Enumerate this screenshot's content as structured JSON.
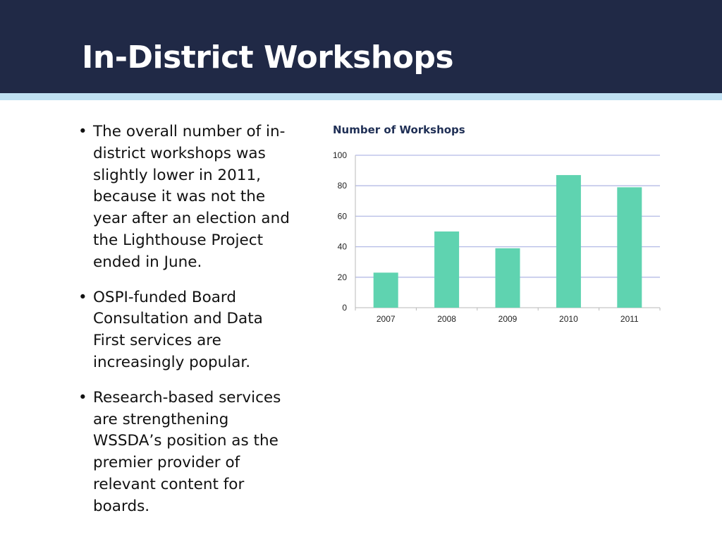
{
  "slide": {
    "title": "In-District Workshops"
  },
  "bullets": [
    {
      "text": "The overall number of in-district workshops was slightly lower in 2011, because it was not the year after an election and the Lighthouse Project ended in June."
    },
    {
      "text": "OSPI-funded  Board Consultation and Data First services are increasingly popular."
    },
    {
      "text": "Research-based services are strengthening WSSDA’s position as the premier provider of relevant content for boards."
    }
  ],
  "bullet_glyph": "•",
  "colors": {
    "header_bg": "#202946",
    "header_stripe": "#bfe0f2",
    "bar": "#5fd3b0",
    "grid": "#b4bbe6",
    "chart_title": "#1f2f55"
  },
  "chart_data": {
    "type": "bar",
    "title": "Number of Workshops",
    "categories": [
      "2007",
      "2008",
      "2009",
      "2010",
      "2011"
    ],
    "values": [
      23,
      50,
      39,
      87,
      79
    ],
    "ylim": [
      0,
      100
    ],
    "yticks": [
      "0",
      "20",
      "40",
      "60",
      "80",
      "100"
    ],
    "xlabel": "",
    "ylabel": "",
    "grid": true,
    "legend": "none"
  }
}
